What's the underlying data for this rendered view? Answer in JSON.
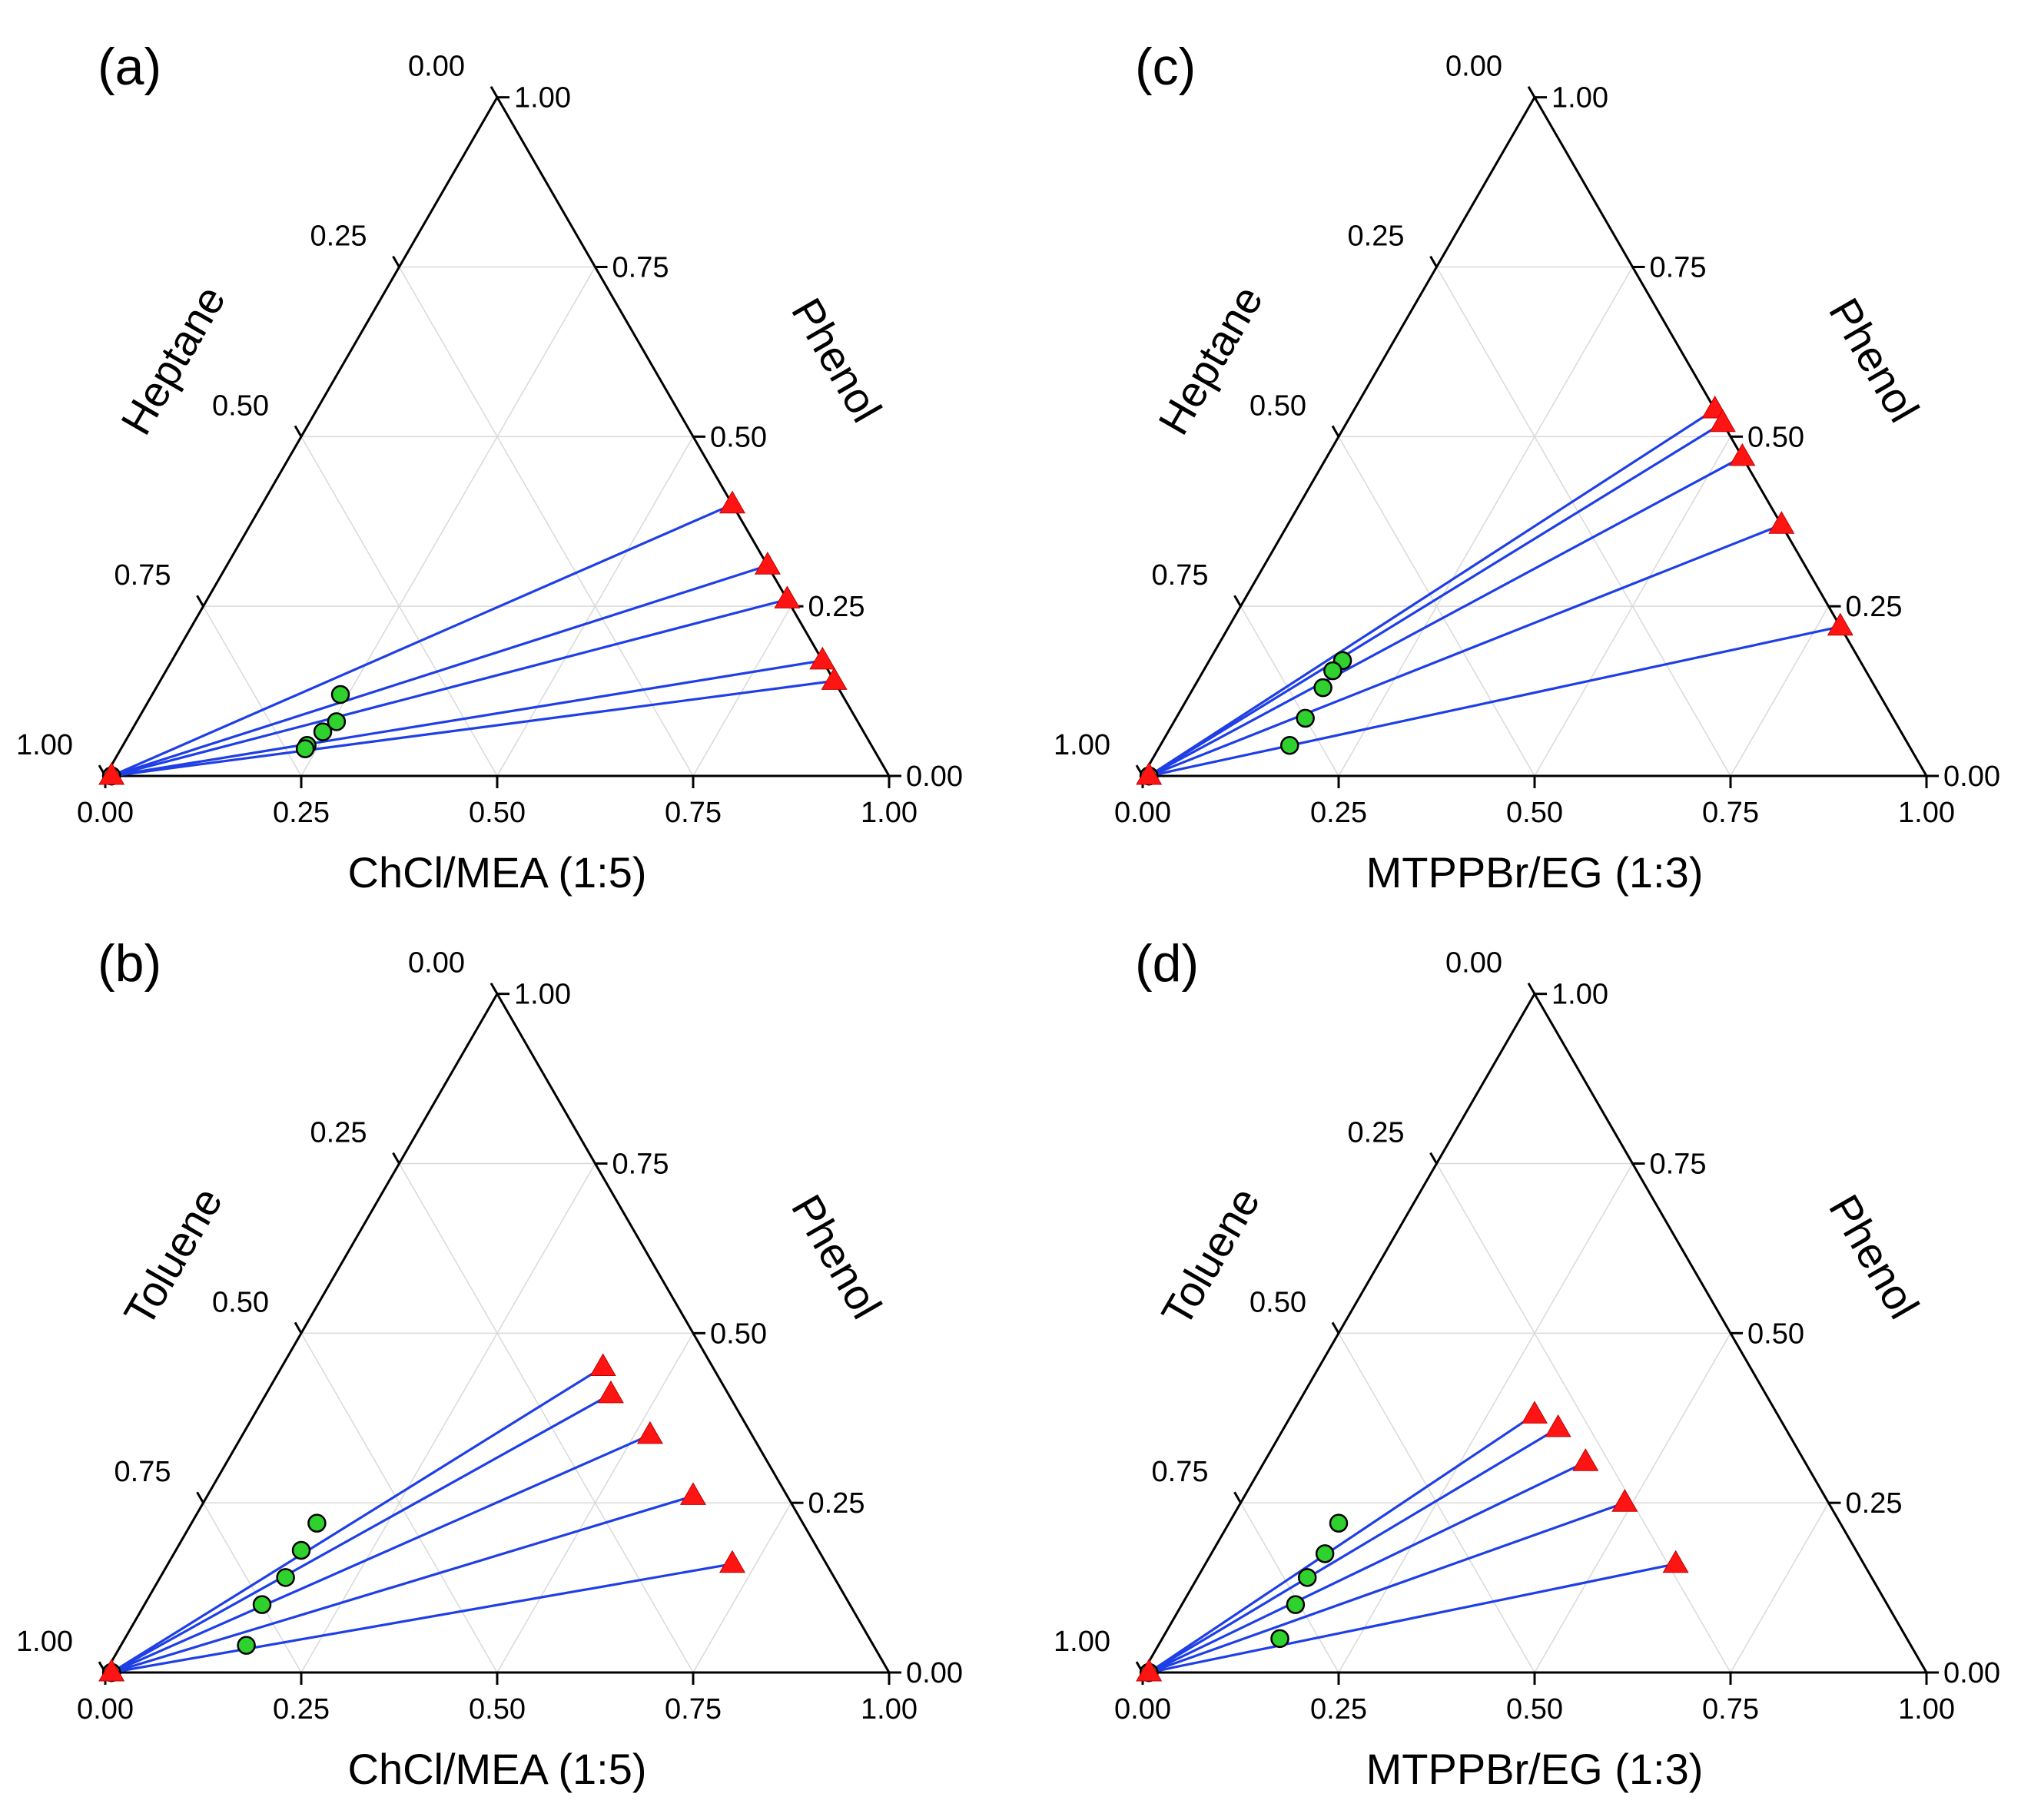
{
  "figure": {
    "colors": {
      "tie_line": "#1f3fe6",
      "raffinate_marker": "#2ed12e",
      "extract_marker": "#ff1414",
      "grid": "#d9d9d9"
    }
  },
  "chart_data": [
    {
      "panel": "(a)",
      "type": "scatter",
      "subtype": "ternary",
      "components": {
        "bottom": "ChCl/MEA (1:5)",
        "left": "Heptane",
        "right": "Phenol"
      },
      "ticks": [
        "0.00",
        "0.25",
        "0.50",
        "0.75",
        "1.00"
      ],
      "gridlines": true,
      "series": [
        {
          "name": "raffinate",
          "marker": "circle",
          "points": [
            [
              0.008,
              0.992,
              0.0
            ],
            [
              0.008,
              0.992,
              0.0
            ],
            [
              0.008,
              0.992,
              0.0
            ],
            [
              0.008,
              0.992,
              0.0
            ],
            [
              0.008,
              0.992,
              0.0
            ],
            [
              0.24,
              0.64,
              0.12
            ],
            [
              0.255,
              0.665,
              0.08
            ],
            [
              0.245,
              0.69,
              0.065
            ],
            [
              0.235,
              0.72,
              0.045
            ],
            [
              0.235,
              0.725,
              0.04
            ]
          ]
        },
        {
          "name": "extract",
          "marker": "triangle",
          "points": [
            [
              0.008,
              0.992,
              0.0
            ],
            [
              0.6,
              0.0,
              0.4
            ],
            [
              0.69,
              0.0,
              0.31
            ],
            [
              0.74,
              0.0,
              0.26
            ],
            [
              0.83,
              0.0,
              0.17
            ],
            [
              0.86,
              0.0,
              0.14
            ]
          ]
        }
      ],
      "tie_lines": [
        {
          "from": [
            0.008,
            0.992,
            0.0
          ],
          "to": [
            0.6,
            0.0,
            0.4
          ]
        },
        {
          "from": [
            0.008,
            0.992,
            0.0
          ],
          "to": [
            0.69,
            0.0,
            0.31
          ]
        },
        {
          "from": [
            0.008,
            0.992,
            0.0
          ],
          "to": [
            0.74,
            0.0,
            0.26
          ]
        },
        {
          "from": [
            0.008,
            0.992,
            0.0
          ],
          "to": [
            0.83,
            0.0,
            0.17
          ]
        },
        {
          "from": [
            0.008,
            0.992,
            0.0
          ],
          "to": [
            0.86,
            0.0,
            0.14
          ]
        }
      ]
    },
    {
      "panel": "(b)",
      "type": "scatter",
      "subtype": "ternary",
      "components": {
        "bottom": "ChCl/MEA (1:5)",
        "left": "Toluene",
        "right": "Phenol"
      },
      "ticks": [
        "0.00",
        "0.25",
        "0.50",
        "0.75",
        "1.00"
      ],
      "gridlines": true,
      "series": [
        {
          "name": "raffinate",
          "marker": "circle",
          "points": [
            [
              0.008,
              0.992,
              0.0
            ],
            [
              0.008,
              0.992,
              0.0
            ],
            [
              0.008,
              0.992,
              0.0
            ],
            [
              0.008,
              0.992,
              0.0
            ],
            [
              0.008,
              0.992,
              0.0
            ],
            [
              0.16,
              0.62,
              0.22
            ],
            [
              0.16,
              0.66,
              0.18
            ],
            [
              0.16,
              0.7,
              0.14
            ],
            [
              0.15,
              0.75,
              0.1
            ],
            [
              0.16,
              0.8,
              0.04
            ]
          ]
        },
        {
          "name": "extract",
          "marker": "triangle",
          "points": [
            [
              0.008,
              0.992,
              0.0
            ],
            [
              0.41,
              0.14,
              0.45
            ],
            [
              0.44,
              0.15,
              0.41
            ],
            [
              0.52,
              0.13,
              0.35
            ],
            [
              0.62,
              0.12,
              0.26
            ],
            [
              0.72,
              0.12,
              0.16
            ]
          ]
        }
      ],
      "tie_lines": [
        {
          "from": [
            0.008,
            0.992,
            0.0
          ],
          "to": [
            0.41,
            0.14,
            0.45
          ]
        },
        {
          "from": [
            0.008,
            0.992,
            0.0
          ],
          "to": [
            0.44,
            0.15,
            0.41
          ]
        },
        {
          "from": [
            0.008,
            0.992,
            0.0
          ],
          "to": [
            0.52,
            0.13,
            0.35
          ]
        },
        {
          "from": [
            0.008,
            0.992,
            0.0
          ],
          "to": [
            0.62,
            0.12,
            0.26
          ]
        },
        {
          "from": [
            0.008,
            0.992,
            0.0
          ],
          "to": [
            0.72,
            0.12,
            0.16
          ]
        }
      ]
    },
    {
      "panel": "(c)",
      "type": "scatter",
      "subtype": "ternary",
      "components": {
        "bottom": "MTPPBr/EG (1:3)",
        "left": "Heptane",
        "right": "Phenol"
      },
      "ticks": [
        "0.00",
        "0.25",
        "0.50",
        "0.75",
        "1.00"
      ],
      "gridlines": true,
      "series": [
        {
          "name": "raffinate",
          "marker": "circle",
          "points": [
            [
              0.008,
              0.992,
              0.0
            ],
            [
              0.008,
              0.992,
              0.0
            ],
            [
              0.008,
              0.992,
              0.0
            ],
            [
              0.008,
              0.992,
              0.0
            ],
            [
              0.008,
              0.992,
              0.0
            ],
            [
              0.17,
              0.66,
              0.17
            ],
            [
              0.165,
              0.68,
              0.155
            ],
            [
              0.165,
              0.705,
              0.13
            ],
            [
              0.165,
              0.75,
              0.085
            ],
            [
              0.165,
              0.79,
              0.045
            ]
          ]
        },
        {
          "name": "extract",
          "marker": "triangle",
          "points": [
            [
              0.008,
              0.992,
              0.0
            ],
            [
              0.46,
              0.0,
              0.54
            ],
            [
              0.48,
              0.0,
              0.52
            ],
            [
              0.53,
              0.0,
              0.47
            ],
            [
              0.63,
              0.0,
              0.37
            ],
            [
              0.78,
              0.0,
              0.22
            ]
          ]
        }
      ],
      "tie_lines": [
        {
          "from": [
            0.008,
            0.992,
            0.0
          ],
          "to": [
            0.46,
            0.0,
            0.54
          ]
        },
        {
          "from": [
            0.008,
            0.992,
            0.0
          ],
          "to": [
            0.48,
            0.0,
            0.52
          ]
        },
        {
          "from": [
            0.008,
            0.992,
            0.0
          ],
          "to": [
            0.53,
            0.0,
            0.47
          ]
        },
        {
          "from": [
            0.008,
            0.992,
            0.0
          ],
          "to": [
            0.63,
            0.0,
            0.37
          ]
        },
        {
          "from": [
            0.008,
            0.992,
            0.0
          ],
          "to": [
            0.78,
            0.0,
            0.22
          ]
        }
      ]
    },
    {
      "panel": "(d)",
      "type": "scatter",
      "subtype": "ternary",
      "components": {
        "bottom": "MTPPBr/EG (1:3)",
        "left": "Toluene",
        "right": "Phenol"
      },
      "ticks": [
        "0.00",
        "0.25",
        "0.50",
        "0.75",
        "1.00"
      ],
      "gridlines": true,
      "series": [
        {
          "name": "raffinate",
          "marker": "circle",
          "points": [
            [
              0.008,
              0.992,
              0.0
            ],
            [
              0.008,
              0.992,
              0.0
            ],
            [
              0.008,
              0.992,
              0.0
            ],
            [
              0.008,
              0.992,
              0.0
            ],
            [
              0.008,
              0.992,
              0.0
            ],
            [
              0.14,
              0.64,
              0.22
            ],
            [
              0.145,
              0.68,
              0.175
            ],
            [
              0.14,
              0.72,
              0.14
            ],
            [
              0.145,
              0.755,
              0.1
            ],
            [
              0.15,
              0.8,
              0.05
            ]
          ]
        },
        {
          "name": "extract",
          "marker": "triangle",
          "points": [
            [
              0.008,
              0.992,
              0.0
            ],
            [
              0.31,
              0.31,
              0.38
            ],
            [
              0.35,
              0.29,
              0.36
            ],
            [
              0.41,
              0.28,
              0.31
            ],
            [
              0.49,
              0.26,
              0.25
            ],
            [
              0.6,
              0.24,
              0.16
            ]
          ]
        }
      ],
      "tie_lines": [
        {
          "from": [
            0.008,
            0.992,
            0.0
          ],
          "to": [
            0.31,
            0.31,
            0.38
          ]
        },
        {
          "from": [
            0.008,
            0.992,
            0.0
          ],
          "to": [
            0.35,
            0.29,
            0.36
          ]
        },
        {
          "from": [
            0.008,
            0.992,
            0.0
          ],
          "to": [
            0.41,
            0.28,
            0.31
          ]
        },
        {
          "from": [
            0.008,
            0.992,
            0.0
          ],
          "to": [
            0.49,
            0.26,
            0.25
          ]
        },
        {
          "from": [
            0.008,
            0.992,
            0.0
          ],
          "to": [
            0.6,
            0.24,
            0.16
          ]
        }
      ]
    }
  ]
}
